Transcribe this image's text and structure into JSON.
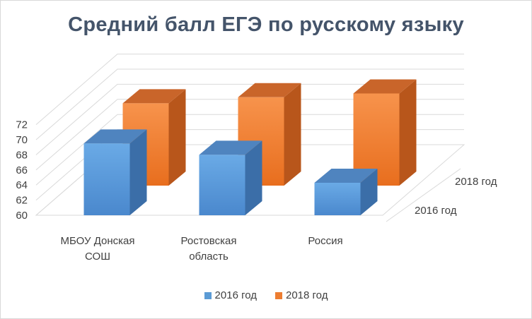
{
  "chart_data": {
    "type": "bar",
    "title": "Средний балл ЕГЭ по русскому языку",
    "categories": [
      "МБОУ Донская СОШ",
      "Ростовская область",
      "Россия"
    ],
    "category_lines": [
      [
        "МБОУ Донская",
        "СОШ"
      ],
      [
        "Ростовская",
        "область"
      ],
      [
        "Россия"
      ]
    ],
    "series": [
      {
        "name": "2016 год",
        "values": [
          69.5,
          68.0,
          64.3
        ],
        "color": "#5b9bd5"
      },
      {
        "name": "2018 год",
        "values": [
          70.9,
          71.7,
          72.2
        ],
        "color": "#ed7d31"
      }
    ],
    "ylim": [
      60,
      72
    ],
    "yticks": [
      "60",
      "62",
      "64",
      "66",
      "68",
      "70",
      "72"
    ],
    "depth_labels": [
      "2016 год",
      "2018 год"
    ],
    "grid": true,
    "legend": "bottom"
  }
}
